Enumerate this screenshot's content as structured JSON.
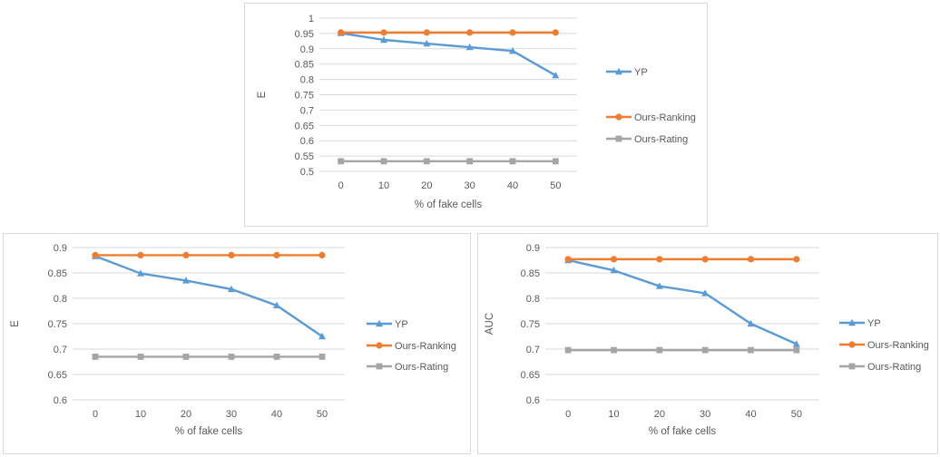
{
  "chart_data": [
    {
      "type": "line",
      "xlabel": "% of fake cells",
      "ylabel": "E",
      "categories": [
        "0",
        "10",
        "20",
        "30",
        "40",
        "50"
      ],
      "ylim": [
        0.5,
        1
      ],
      "yticks": [
        "1",
        "0.95",
        "0.9",
        "0.85",
        "0.8",
        "0.75",
        "0.7",
        "0.65",
        "0.6",
        "0.55",
        "0.5"
      ],
      "grid": "horizontal",
      "legend_position": "right",
      "series": [
        {
          "name": "YP",
          "color": "#5b9bd5",
          "marker": "triangle",
          "values": [
            0.951,
            0.929,
            0.917,
            0.905,
            0.893,
            0.813
          ]
        },
        {
          "name": "Ours-Ranking",
          "color": "#ed7d31",
          "marker": "circle",
          "values": [
            0.953,
            0.953,
            0.953,
            0.953,
            0.953,
            0.953
          ]
        },
        {
          "name": "Ours-Rating",
          "color": "#a5a5a5",
          "marker": "square",
          "values": [
            0.533,
            0.533,
            0.533,
            0.533,
            0.533,
            0.533
          ]
        }
      ]
    },
    {
      "type": "line",
      "xlabel": "% of fake cells",
      "ylabel": "E",
      "categories": [
        "0",
        "10",
        "20",
        "30",
        "40",
        "50"
      ],
      "ylim": [
        0.6,
        0.9
      ],
      "yticks": [
        "0.9",
        "0.85",
        "0.8",
        "0.75",
        "0.7",
        "0.65",
        "0.6"
      ],
      "grid": "horizontal",
      "legend_position": "right",
      "series": [
        {
          "name": "YP",
          "color": "#5b9bd5",
          "marker": "triangle",
          "values": [
            0.883,
            0.849,
            0.835,
            0.818,
            0.786,
            0.725
          ]
        },
        {
          "name": "Ours-Ranking",
          "color": "#ed7d31",
          "marker": "circle",
          "values": [
            0.885,
            0.885,
            0.885,
            0.885,
            0.885,
            0.885
          ]
        },
        {
          "name": "Ours-Rating",
          "color": "#a5a5a5",
          "marker": "square",
          "values": [
            0.685,
            0.685,
            0.685,
            0.685,
            0.685,
            0.685
          ]
        }
      ]
    },
    {
      "type": "line",
      "xlabel": "% of fake cells",
      "ylabel": "AUC",
      "categories": [
        "0",
        "10",
        "20",
        "30",
        "40",
        "50"
      ],
      "ylim": [
        0.6,
        0.9
      ],
      "yticks": [
        "0.9",
        "0.85",
        "0.8",
        "0.75",
        "0.7",
        "0.65",
        "0.6"
      ],
      "grid": "horizontal",
      "legend_position": "right",
      "series": [
        {
          "name": "YP",
          "color": "#5b9bd5",
          "marker": "triangle",
          "values": [
            0.875,
            0.855,
            0.824,
            0.81,
            0.75,
            0.71
          ]
        },
        {
          "name": "Ours-Ranking",
          "color": "#ed7d31",
          "marker": "circle",
          "values": [
            0.877,
            0.877,
            0.877,
            0.877,
            0.877,
            0.877
          ]
        },
        {
          "name": "Ours-Rating",
          "color": "#a5a5a5",
          "marker": "square",
          "values": [
            0.698,
            0.698,
            0.698,
            0.698,
            0.698,
            0.698
          ]
        }
      ]
    }
  ]
}
